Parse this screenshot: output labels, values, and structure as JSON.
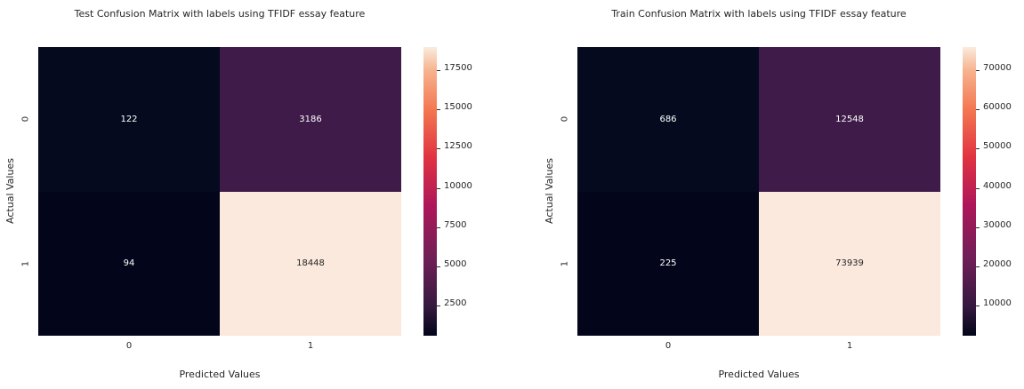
{
  "figure": {
    "background_color": "#ffffff",
    "text_color": "#262626"
  },
  "colormap": {
    "name": "rocket",
    "low_color": "#03051a",
    "high_color": "#faebdd",
    "gradient_css": "linear-gradient(to top, #03051a 0%, #35193e 10%, #701f57 27%, #ad1759 45%, #e13342 62%, #f37651 78%, #f6b48f 92%, #faebdd 100%)"
  },
  "chart_data": [
    {
      "type": "heatmap",
      "title": "Test Confusion Matrix with labels using TFIDF essay feature",
      "xlabel": "Predicted Values",
      "ylabel": "Actual Values",
      "x_categories": [
        "0",
        "1"
      ],
      "y_categories": [
        "0",
        "1"
      ],
      "values": [
        [
          122,
          3186
        ],
        [
          94,
          18448
        ]
      ],
      "cell_colors": [
        [
          "#050a1e",
          "#3e1b48"
        ],
        [
          "#03051a",
          "#fae9dc"
        ]
      ],
      "annot_colors": [
        [
          "#ffffff",
          "#ffffff"
        ],
        [
          "#ffffff",
          "#262626"
        ]
      ],
      "colormap": "rocket",
      "legend": "colorbar-right",
      "colorbar_range": [
        94,
        18448
      ],
      "colorbar_ticks": [
        2500,
        5000,
        7500,
        10000,
        12500,
        15000,
        17500
      ]
    },
    {
      "type": "heatmap",
      "title": "Train Confusion Matrix with labels using TFIDF essay feature",
      "xlabel": "Predicted Values",
      "ylabel": "Actual Values",
      "x_categories": [
        "0",
        "1"
      ],
      "y_categories": [
        "0",
        "1"
      ],
      "values": [
        [
          686,
          12548
        ],
        [
          225,
          73939
        ]
      ],
      "cell_colors": [
        [
          "#050a1e",
          "#3e1b48"
        ],
        [
          "#03051a",
          "#fae9dc"
        ]
      ],
      "annot_colors": [
        [
          "#ffffff",
          "#ffffff"
        ],
        [
          "#ffffff",
          "#262626"
        ]
      ],
      "colormap": "rocket",
      "legend": "colorbar-right",
      "colorbar_range": [
        225,
        73939
      ],
      "colorbar_ticks": [
        10000,
        20000,
        30000,
        40000,
        50000,
        60000,
        70000
      ]
    }
  ]
}
